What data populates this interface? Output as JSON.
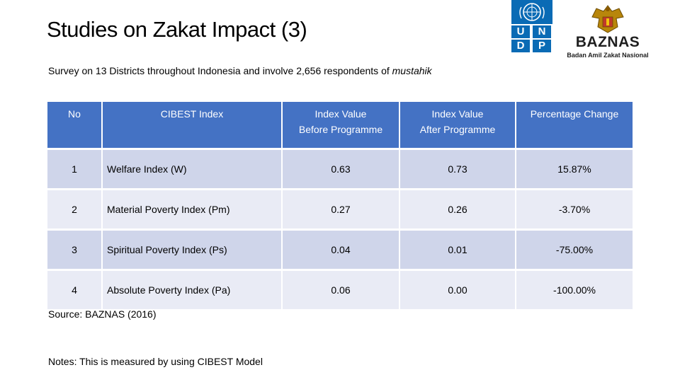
{
  "title": "Studies on Zakat Impact (3)",
  "subtitle_main": "Survey on 13 Districts throughout Indonesia and involve 2,656 respondents of ",
  "subtitle_em": "mustahik",
  "logos": {
    "undp": {
      "letters": [
        "U",
        "N",
        "D",
        "P"
      ]
    },
    "baznas": {
      "word": "BAZNAS",
      "sub": "Badan Amil Zakat Nasional"
    }
  },
  "table": {
    "headers": {
      "no": "No",
      "index": "CIBEST Index",
      "before_1": "Index Value",
      "before_2": "Before Programme",
      "after_1": "Index Value",
      "after_2": "After Programme",
      "change": "Percentage Change"
    },
    "rows": [
      {
        "no": "1",
        "index": "Welfare Index (W)",
        "before": "0.63",
        "after": "0.73",
        "change": "15.87%"
      },
      {
        "no": "2",
        "index": "Material Poverty Index (Pm)",
        "before": "0.27",
        "after": "0.26",
        "change": "-3.70%"
      },
      {
        "no": "3",
        "index": "Spiritual Poverty Index (Ps)",
        "before": "0.04",
        "after": "0.01",
        "change": "-75.00%"
      },
      {
        "no": "4",
        "index": "Absolute Poverty Index (Pa)",
        "before": "0.06",
        "after": "0.00",
        "change": "-100.00%"
      }
    ]
  },
  "source": "Source: BAZNAS (2016)",
  "notes": "Notes: This is measured by using CIBEST Model",
  "colors": {
    "header": "#4472c4",
    "row_odd": "#cfd5ea",
    "row_even": "#e9ebf5",
    "undp_blue": "#0a6bb5"
  }
}
